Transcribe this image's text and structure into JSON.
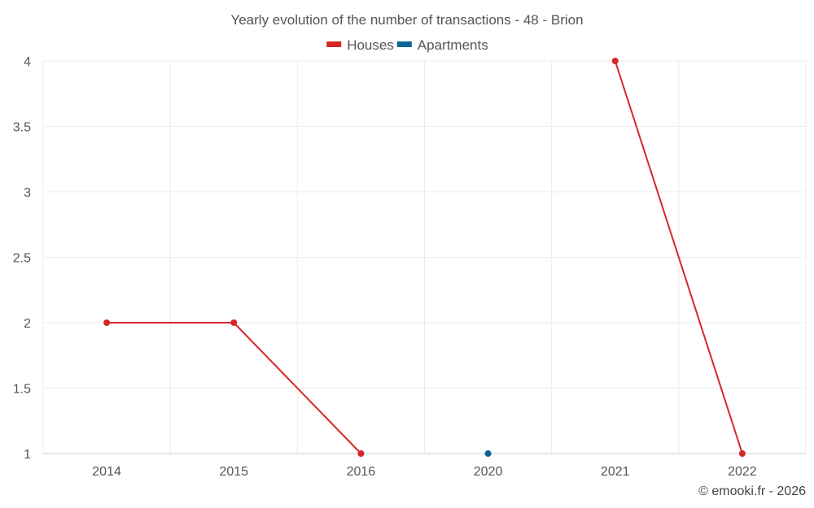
{
  "chart_data": {
    "type": "line",
    "title": "Yearly evolution of the number of transactions - 48 - Brion",
    "categories": [
      "2014",
      "2015",
      "2016",
      "2020",
      "2021",
      "2022"
    ],
    "series": [
      {
        "name": "Houses",
        "color": "#d62728",
        "values": [
          2,
          2,
          1,
          null,
          4,
          1
        ]
      },
      {
        "name": "Apartments",
        "color": "#0b6396",
        "values": [
          null,
          null,
          null,
          1,
          null,
          null
        ]
      }
    ],
    "xlabel": "",
    "ylabel": "",
    "ylim": [
      1,
      4
    ],
    "yticks": [
      "1",
      "1.5",
      "2",
      "2.5",
      "3",
      "3.5",
      "4"
    ],
    "grid": true,
    "legend_position": "top-center"
  },
  "credit": "© emooki.fr - 2026"
}
